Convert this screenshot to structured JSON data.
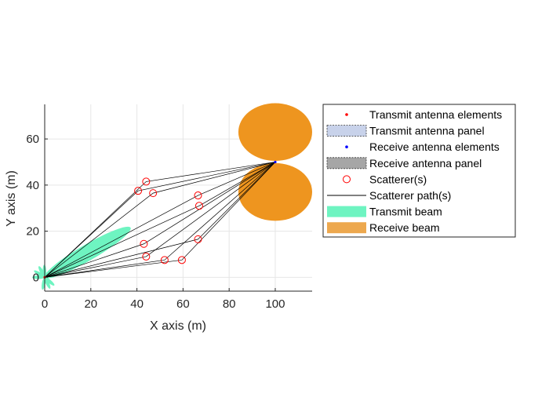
{
  "chart_data": {
    "type": "scatter",
    "xlabel": "X axis (m)",
    "ylabel": "Y axis (m)",
    "xlim": [
      0,
      116
    ],
    "ylim": [
      -6,
      75
    ],
    "xticks": [
      0,
      20,
      40,
      60,
      80,
      100
    ],
    "yticks": [
      0,
      20,
      40,
      60
    ],
    "xtick_labels": [
      "0",
      "20",
      "40",
      "60",
      "80",
      "100"
    ],
    "ytick_labels": [
      "0",
      "20",
      "40",
      "60"
    ],
    "grid": true,
    "legend_position": "outside-right",
    "transmitter": {
      "x": 0,
      "y": 0
    },
    "receiver": {
      "x": 100,
      "y": 50
    },
    "scatterers": [
      {
        "x": 44,
        "y": 41.5
      },
      {
        "x": 40.5,
        "y": 37.5
      },
      {
        "x": 47,
        "y": 36.5
      },
      {
        "x": 66.5,
        "y": 35.5
      },
      {
        "x": 67,
        "y": 31
      },
      {
        "x": 66.5,
        "y": 16.5
      },
      {
        "x": 43,
        "y": 14.5
      },
      {
        "x": 44,
        "y": 9
      },
      {
        "x": 52,
        "y": 7.5
      },
      {
        "x": 59.5,
        "y": 7.5
      }
    ],
    "transmit_beam": {
      "direction_deg": 30,
      "main_lobe_length": 43,
      "main_lobe_width": 7
    },
    "receive_beam": {
      "lobes": [
        {
          "cx": 100,
          "cy": 63,
          "rx": 16,
          "ry": 12.5
        },
        {
          "cx": 100,
          "cy": 37,
          "rx": 16,
          "ry": 12.5
        }
      ]
    },
    "legend": [
      {
        "label": "Transmit antenna elements",
        "symbol": "dot",
        "color": "#ff0000"
      },
      {
        "label": "Transmit antenna panel",
        "symbol": "panel",
        "color": "#c8d2ea"
      },
      {
        "label": "Receive antenna elements",
        "symbol": "dot",
        "color": "#0000ff"
      },
      {
        "label": "Receive antenna panel",
        "symbol": "panel",
        "color": "#a6a6a6"
      },
      {
        "label": "Scatterer(s)",
        "symbol": "circle",
        "color": "#ff0000"
      },
      {
        "label": "Scatterer path(s)",
        "symbol": "line",
        "color": "#000000"
      },
      {
        "label": "Transmit beam",
        "symbol": "patch",
        "color": "#6ef4c1"
      },
      {
        "label": "Receive beam",
        "symbol": "patch",
        "color": "#eda84e"
      }
    ],
    "colors": {
      "transmit_beam": "#6ef4c1",
      "receive_beam": "#ee951f",
      "scatterer": "#ff0000",
      "path": "#000000",
      "grid": "#e6e6e6",
      "axis": "#262626"
    }
  }
}
